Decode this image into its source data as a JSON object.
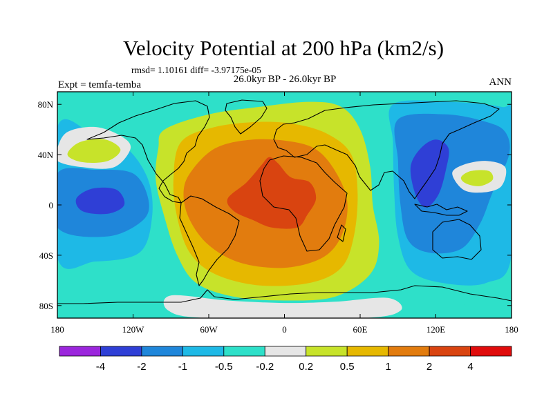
{
  "chart_data": {
    "type": "heatmap",
    "title": "Velocity Potential at 200 hPa (km2/s)",
    "stats": "rmsd= 1.10161 diff= -3.97175e-05",
    "left_label": "Expt = temfa-temba",
    "center_label": "26.0kyr BP - 26.0kyr BP",
    "right_label": "ANN",
    "x_ticks": [
      "180",
      "120W",
      "60W",
      "0",
      "60E",
      "120E",
      "180"
    ],
    "x_tick_values": [
      -180,
      -120,
      -60,
      0,
      60,
      120,
      180
    ],
    "y_ticks": [
      "80N",
      "40N",
      "0",
      "40S",
      "80S"
    ],
    "y_tick_values": [
      80,
      40,
      0,
      -40,
      -80
    ],
    "xlim": [
      -180,
      180
    ],
    "ylim": [
      -90,
      90
    ],
    "colorbar": {
      "labels": [
        "-4",
        "-2",
        "-1",
        "-0.5",
        "-0.2",
        "0.2",
        "0.5",
        "1",
        "2",
        "4"
      ],
      "colors": [
        "#9b26dc",
        "#2f3fd6",
        "#1f86da",
        "#1eb9e6",
        "#2ee0c9",
        "#e6e6e6",
        "#c7e32a",
        "#e6b800",
        "#e27c0e",
        "#d94410",
        "#e00c0c"
      ]
    },
    "fields": [
      {
        "name": "atlantic-africa-high",
        "level": 0.2,
        "color_index": 6,
        "polygon": [
          [
            -95,
            60
          ],
          [
            -60,
            72
          ],
          [
            -20,
            78
          ],
          [
            20,
            82
          ],
          [
            45,
            78
          ],
          [
            60,
            60
          ],
          [
            68,
            30
          ],
          [
            70,
            0
          ],
          [
            75,
            -30
          ],
          [
            68,
            -55
          ],
          [
            40,
            -73
          ],
          [
            0,
            -76
          ],
          [
            -40,
            -73
          ],
          [
            -70,
            -62
          ],
          [
            -85,
            -40
          ],
          [
            -95,
            -10
          ],
          [
            -102,
            20
          ],
          [
            -100,
            45
          ]
        ]
      },
      {
        "name": "atlantic-africa-high",
        "level": 0.5,
        "color_index": 7,
        "polygon": [
          [
            -82,
            50
          ],
          [
            -55,
            62
          ],
          [
            -20,
            66
          ],
          [
            10,
            64
          ],
          [
            35,
            56
          ],
          [
            53,
            40
          ],
          [
            58,
            10
          ],
          [
            55,
            -25
          ],
          [
            45,
            -50
          ],
          [
            20,
            -62
          ],
          [
            -20,
            -64
          ],
          [
            -55,
            -55
          ],
          [
            -75,
            -38
          ],
          [
            -85,
            -10
          ],
          [
            -88,
            20
          ]
        ]
      },
      {
        "name": "atlantic-africa-high",
        "level": 1,
        "color_index": 8,
        "polygon": [
          [
            -75,
            25
          ],
          [
            -55,
            45
          ],
          [
            -25,
            52
          ],
          [
            8,
            50
          ],
          [
            28,
            42
          ],
          [
            43,
            22
          ],
          [
            50,
            0
          ],
          [
            45,
            -25
          ],
          [
            30,
            -42
          ],
          [
            0,
            -50
          ],
          [
            -35,
            -46
          ],
          [
            -60,
            -32
          ],
          [
            -75,
            -12
          ],
          [
            -80,
            8
          ]
        ]
      },
      {
        "name": "atlantic-africa-high",
        "level": 2,
        "color_index": 9,
        "polygon": [
          [
            -45,
            5
          ],
          [
            -30,
            18
          ],
          [
            -18,
            32
          ],
          [
            -12,
            38
          ],
          [
            -5,
            33
          ],
          [
            5,
            22
          ],
          [
            20,
            18
          ],
          [
            25,
            5
          ],
          [
            18,
            -8
          ],
          [
            10,
            -18
          ],
          [
            -10,
            -18
          ],
          [
            -25,
            -12
          ],
          [
            -40,
            -5
          ]
        ]
      },
      {
        "name": "indopacific-low",
        "level": -0.2,
        "color_index": 4,
        "polygon": [
          [
            82,
            90
          ],
          [
            180,
            90
          ],
          [
            180,
            -72
          ],
          [
            130,
            -76
          ],
          [
            100,
            -72
          ],
          [
            88,
            -55
          ],
          [
            80,
            -20
          ],
          [
            82,
            20
          ],
          [
            80,
            60
          ]
        ]
      },
      {
        "name": "indopacific-low",
        "level": -0.5,
        "color_index": 3,
        "polygon": [
          [
            86,
            80
          ],
          [
            130,
            82
          ],
          [
            172,
            78
          ],
          [
            180,
            70
          ],
          [
            180,
            -40
          ],
          [
            160,
            -62
          ],
          [
            125,
            -62
          ],
          [
            100,
            -52
          ],
          [
            90,
            -25
          ],
          [
            87,
            10
          ],
          [
            86,
            50
          ]
        ]
      },
      {
        "name": "indopacific-low",
        "level": -1,
        "color_index": 2,
        "polygon": [
          [
            90,
            68
          ],
          [
            128,
            72
          ],
          [
            160,
            66
          ],
          [
            175,
            58
          ],
          [
            178,
            40
          ],
          [
            165,
            10
          ],
          [
            155,
            -15
          ],
          [
            140,
            -35
          ],
          [
            115,
            -38
          ],
          [
            98,
            -28
          ],
          [
            92,
            0
          ],
          [
            90,
            35
          ]
        ]
      },
      {
        "name": "indopacific-low",
        "level": -2,
        "color_index": 1,
        "polygon": [
          [
            100,
            30
          ],
          [
            108,
            45
          ],
          [
            120,
            52
          ],
          [
            130,
            45
          ],
          [
            128,
            28
          ],
          [
            122,
            8
          ],
          [
            112,
            -2
          ],
          [
            104,
            8
          ]
        ]
      },
      {
        "name": "west-pacific-high",
        "level": 0.2,
        "color_index": 5,
        "polygon": [
          [
            133,
            25
          ],
          [
            142,
            32
          ],
          [
            160,
            35
          ],
          [
            175,
            30
          ],
          [
            172,
            15
          ],
          [
            158,
            10
          ],
          [
            142,
            12
          ]
        ]
      },
      {
        "name": "west-pacific-high",
        "level": 0.5,
        "color_index": 6,
        "polygon": [
          [
            140,
            22
          ],
          [
            148,
            27
          ],
          [
            162,
            27
          ],
          [
            165,
            20
          ],
          [
            155,
            15
          ],
          [
            144,
            17
          ]
        ]
      },
      {
        "name": "east-pacific-low",
        "level": -0.2,
        "color_index": 4,
        "polygon": [
          [
            -180,
            78
          ],
          [
            -110,
            80
          ],
          [
            -100,
            60
          ],
          [
            -108,
            30
          ],
          [
            -110,
            0
          ],
          [
            -105,
            -40
          ],
          [
            -92,
            -62
          ],
          [
            -110,
            -75
          ],
          [
            -180,
            -72
          ]
        ]
      },
      {
        "name": "east-pacific-low",
        "level": -0.5,
        "color_index": 3,
        "polygon": [
          [
            -180,
            62
          ],
          [
            -150,
            55
          ],
          [
            -125,
            45
          ],
          [
            -108,
            20
          ],
          [
            -105,
            -10
          ],
          [
            -115,
            -38
          ],
          [
            -150,
            -45
          ],
          [
            -180,
            -42
          ]
        ]
      },
      {
        "name": "east-pacific-low",
        "level": -1,
        "color_index": 2,
        "polygon": [
          [
            -180,
            25
          ],
          [
            -150,
            28
          ],
          [
            -120,
            25
          ],
          [
            -108,
            5
          ],
          [
            -112,
            -12
          ],
          [
            -140,
            -25
          ],
          [
            -180,
            -18
          ]
        ]
      },
      {
        "name": "east-pacific-low",
        "level": -2,
        "color_index": 1,
        "polygon": [
          [
            -165,
            5
          ],
          [
            -152,
            13
          ],
          [
            -133,
            12
          ],
          [
            -127,
            0
          ],
          [
            -140,
            -7
          ],
          [
            -160,
            -5
          ]
        ]
      },
      {
        "name": "north-pacific-high",
        "level": 0.2,
        "color_index": 5,
        "polygon": [
          [
            -180,
            45
          ],
          [
            -172,
            58
          ],
          [
            -150,
            62
          ],
          [
            -130,
            55
          ],
          [
            -122,
            45
          ],
          [
            -135,
            30
          ],
          [
            -160,
            30
          ],
          [
            -180,
            35
          ]
        ]
      },
      {
        "name": "north-pacific-high",
        "level": 0.5,
        "color_index": 6,
        "polygon": [
          [
            -172,
            40
          ],
          [
            -162,
            50
          ],
          [
            -142,
            52
          ],
          [
            -130,
            44
          ],
          [
            -140,
            35
          ],
          [
            -160,
            34
          ]
        ]
      },
      {
        "name": "south-polar-neutral",
        "level": 0.2,
        "color_index": 5,
        "polygon": [
          [
            -90,
            -72
          ],
          [
            -45,
            -76
          ],
          [
            0,
            -78
          ],
          [
            40,
            -77
          ],
          [
            82,
            -74
          ],
          [
            92,
            -84
          ],
          [
            60,
            -90
          ],
          [
            -60,
            -90
          ],
          [
            -92,
            -84
          ]
        ]
      }
    ]
  }
}
